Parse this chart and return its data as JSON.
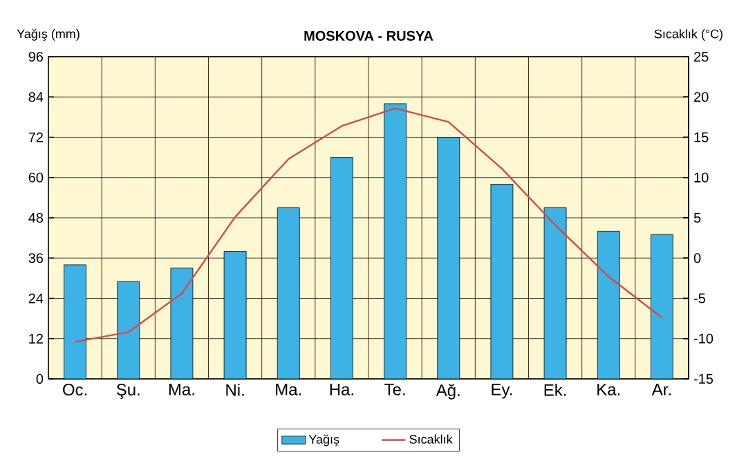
{
  "chart_data": {
    "type": "bar",
    "title": "MOSKOVA - RUSYA",
    "ylabel": "Yağış (mm)",
    "y2label": "Sıcaklık (°C)",
    "categories": [
      "Oc.",
      "Şu.",
      "Ma.",
      "Ni.",
      "Ma.",
      "Ha.",
      "Te.",
      "Ağ.",
      "Ey.",
      "Ek.",
      "Ka.",
      "Ar."
    ],
    "series": [
      {
        "name": "Yağış",
        "color": "#3db2e4",
        "values": [
          34,
          29,
          33,
          38,
          51,
          66,
          82,
          72,
          58,
          51,
          44,
          43
        ]
      },
      {
        "name": "Sıcaklık",
        "type": "line",
        "axis": "y2",
        "color": "#d24a4a",
        "values": [
          -10.4,
          -9.2,
          -4.4,
          5.1,
          12.3,
          16.4,
          18.6,
          16.9,
          11.1,
          4.1,
          -2.3,
          -7.4
        ]
      }
    ],
    "ylim": [
      0,
      96
    ],
    "yticks": [
      0,
      12,
      24,
      36,
      48,
      60,
      72,
      84,
      96
    ],
    "y2lim": [
      -15,
      25
    ],
    "y2ticks": [
      -15,
      -10,
      -5,
      0,
      5,
      10,
      15,
      20,
      25
    ],
    "grid": true,
    "legend": "bottom",
    "marker": "none",
    "line_style": "solid"
  }
}
